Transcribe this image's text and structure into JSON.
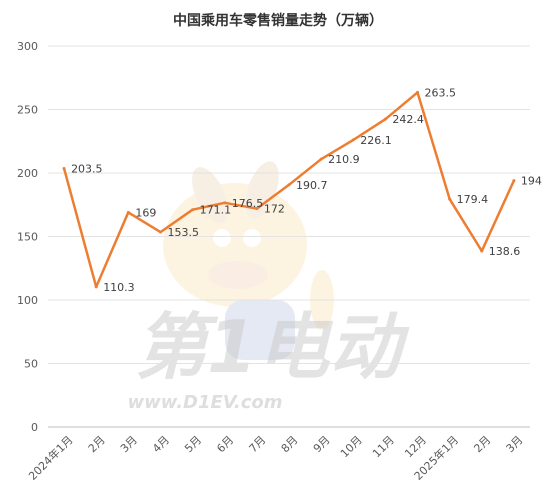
{
  "chart_data": {
    "type": "line",
    "title": "中国乘用车零售销量走势（万辆）",
    "categories": [
      "2024年1月",
      "2月",
      "3月",
      "4月",
      "5月",
      "6月",
      "7月",
      "8月",
      "9月",
      "10月",
      "11月",
      "12月",
      "2025年1月",
      "2月",
      "3月"
    ],
    "series": [
      {
        "values": [
          203.5,
          110.3,
          169,
          153.5,
          171.1,
          176.5,
          172,
          190.7,
          210.9,
          226.1,
          242.4,
          263.5,
          179.4,
          138.6,
          194
        ],
        "labels": [
          "203.5",
          "110.3",
          "169",
          "153.5",
          "171.1",
          "176.5",
          "172",
          "190.7",
          "210.9",
          "226.1",
          "242.4",
          "263.5",
          "179.4",
          "138.6",
          "194"
        ]
      }
    ],
    "y_ticks": [
      "0",
      "50",
      "100",
      "150",
      "200",
      "250",
      "300"
    ],
    "ylim": [
      0,
      300
    ],
    "grid": true,
    "line_color": "#ED7D31"
  },
  "watermark": {
    "brand_text": "第1电动",
    "url_text": "www.D1EV.com"
  }
}
